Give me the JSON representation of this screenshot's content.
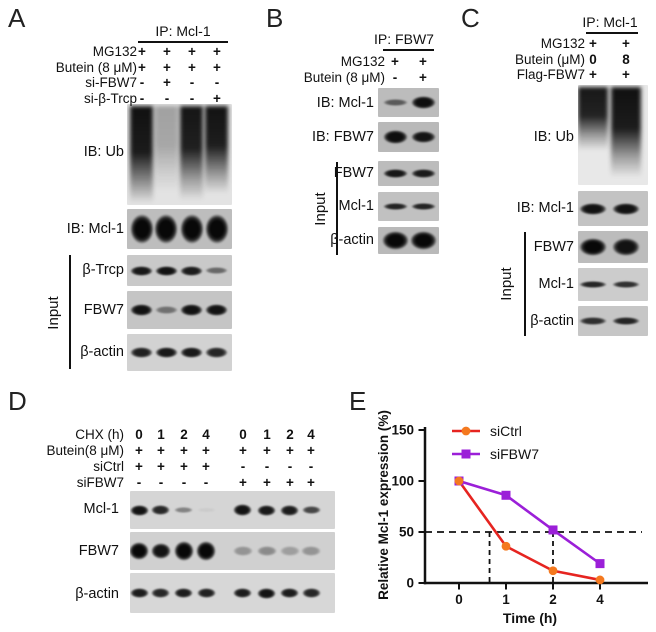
{
  "panels": {
    "a": {
      "letter": "A",
      "ip_header": "IP:  Mcl-1",
      "input_label": "Input",
      "rows": [
        {
          "label": "MG132",
          "values": [
            "+",
            "+",
            "+",
            "+"
          ]
        },
        {
          "label": "Butein (8 μM)",
          "values": [
            "+",
            "+",
            "+",
            "+"
          ]
        },
        {
          "label": "si-FBW7",
          "values": [
            "-",
            "+",
            "-",
            "-"
          ]
        },
        {
          "label": "si-β-Trcp",
          "values": [
            "-",
            "-",
            "-",
            "+"
          ]
        }
      ],
      "blots": [
        {
          "label": "IB: Ub",
          "style": "smear",
          "lanes": [
            [
              0.97,
              0.95
            ],
            [
              0.3,
              0.8
            ],
            [
              0.95,
              0.88
            ],
            [
              0.96,
              0.82
            ]
          ]
        },
        {
          "label": "IB: Mcl-1",
          "style": "band",
          "lanes": [
            [
              1,
              1
            ],
            [
              1,
              1
            ],
            [
              1,
              1
            ],
            [
              1,
              1
            ]
          ]
        },
        {
          "label": "β-Trcp",
          "style": "band",
          "lanes": [
            [
              0.92,
              1
            ],
            [
              0.95,
              1
            ],
            [
              0.9,
              1
            ],
            [
              0.5,
              0.7
            ]
          ]
        },
        {
          "label": "FBW7",
          "style": "band",
          "lanes": [
            [
              0.95,
              1
            ],
            [
              0.45,
              0.7
            ],
            [
              0.95,
              1
            ],
            [
              0.95,
              1
            ]
          ]
        },
        {
          "label": "β-actin",
          "style": "band",
          "lanes": [
            [
              0.88,
              1
            ],
            [
              0.92,
              1
            ],
            [
              0.92,
              1
            ],
            [
              0.85,
              1
            ]
          ]
        }
      ]
    },
    "b": {
      "letter": "B",
      "ip_header": "IP:  FBW7",
      "input_label": "Input",
      "rows": [
        {
          "label": "MG132",
          "values": [
            "+",
            "+"
          ]
        },
        {
          "label": "Butein (8 μM)",
          "values": [
            "-",
            "+"
          ]
        }
      ],
      "blots": [
        {
          "label": "IB: Mcl-1",
          "style": "band",
          "lanes": [
            [
              0.55,
              0.55
            ],
            [
              0.97,
              1.1
            ]
          ]
        },
        {
          "label": "IB: FBW7",
          "style": "band",
          "lanes": [
            [
              0.97,
              1.1
            ],
            [
              0.93,
              1
            ]
          ]
        },
        {
          "label": "FBW7",
          "style": "band",
          "lanes": [
            [
              0.92,
              0.9
            ],
            [
              0.9,
              0.9
            ]
          ]
        },
        {
          "label": "Mcl-1",
          "style": "band",
          "lanes": [
            [
              0.85,
              0.75
            ],
            [
              0.85,
              0.75
            ]
          ]
        },
        {
          "label": "β-actin",
          "style": "band",
          "lanes": [
            [
              1,
              1.4
            ],
            [
              1,
              1.4
            ]
          ]
        }
      ]
    },
    "c": {
      "letter": "C",
      "ip_header": "IP:  Mcl-1",
      "input_label": "Input",
      "rows": [
        {
          "label": "MG132",
          "values": [
            "+",
            "+"
          ]
        },
        {
          "label": "Butein (μM)",
          "values": [
            "0",
            "8"
          ]
        },
        {
          "label": "Flag-FBW7",
          "values": [
            "+",
            "+"
          ]
        }
      ],
      "blots": [
        {
          "label": "IB: Ub",
          "style": "smear",
          "lanes": [
            [
              0.94,
              0.6
            ],
            [
              0.97,
              0.85
            ]
          ]
        },
        {
          "label": "IB: Mcl-1",
          "style": "band",
          "lanes": [
            [
              0.95,
              1
            ],
            [
              0.95,
              1
            ]
          ]
        },
        {
          "label": "FBW7",
          "style": "band",
          "lanes": [
            [
              1,
              1.35
            ],
            [
              0.95,
              1.25
            ]
          ]
        },
        {
          "label": "Mcl-1",
          "style": "band",
          "lanes": [
            [
              0.85,
              0.8
            ],
            [
              0.8,
              0.75
            ]
          ]
        },
        {
          "label": "β-actin",
          "style": "band",
          "lanes": [
            [
              0.8,
              0.8
            ],
            [
              0.85,
              0.85
            ]
          ]
        }
      ]
    },
    "d": {
      "letter": "D",
      "rows": [
        {
          "label": "CHX (h)",
          "values": [
            "0",
            "1",
            "2",
            "4",
            "0",
            "1",
            "2",
            "4"
          ]
        },
        {
          "label": "Butein(8 μM)",
          "values": [
            "+",
            "+",
            "+",
            "+",
            "+",
            "+",
            "+",
            "+"
          ]
        },
        {
          "label": "siCtrl",
          "values": [
            "+",
            "+",
            "+",
            "+",
            "-",
            "-",
            "-",
            "-"
          ]
        },
        {
          "label": "siFBW7",
          "values": [
            "-",
            "-",
            "-",
            "-",
            "+",
            "+",
            "+",
            "+"
          ]
        }
      ],
      "blots": [
        {
          "label": "Mcl-1",
          "style": "band",
          "lanes": [
            [
              0.95,
              1
            ],
            [
              0.85,
              0.9
            ],
            [
              0.4,
              0.6
            ],
            [
              0.05,
              0.4
            ],
            [
              0.95,
              1.1
            ],
            [
              0.92,
              1
            ],
            [
              0.9,
              1
            ],
            [
              0.7,
              0.8
            ]
          ]
        },
        {
          "label": "FBW7",
          "style": "band",
          "lanes": [
            [
              1,
              1.5
            ],
            [
              0.95,
              1.4
            ],
            [
              1,
              1.6
            ],
            [
              1,
              1.6
            ],
            [
              0.3,
              0.9
            ],
            [
              0.35,
              0.9
            ],
            [
              0.25,
              0.8
            ],
            [
              0.3,
              0.8
            ]
          ]
        },
        {
          "label": "β-actin",
          "style": "band",
          "lanes": [
            [
              0.9,
              1
            ],
            [
              0.85,
              1
            ],
            [
              0.9,
              1
            ],
            [
              0.88,
              1
            ],
            [
              0.9,
              1
            ],
            [
              0.95,
              1.1
            ],
            [
              0.9,
              1
            ],
            [
              0.85,
              1
            ]
          ]
        }
      ]
    },
    "e": {
      "letter": "E"
    }
  },
  "chart_data": {
    "type": "line",
    "x_categories": [
      0,
      1,
      2,
      4
    ],
    "xlabel": "Time (h)",
    "ylabel": "Relative Mcl-1 expression (%)",
    "yticks": [
      0,
      50,
      100,
      150
    ],
    "ylim": [
      0,
      157
    ],
    "grid": false,
    "legend_position": "top-left-inside",
    "series": [
      {
        "name": "siCtrl",
        "values": [
          100,
          36,
          12,
          3
        ],
        "line_color": "#e62420",
        "marker_color": "#f4791f",
        "marker": "circle"
      },
      {
        "name": "siFBW7",
        "values": [
          100,
          86,
          52,
          19
        ],
        "line_color": "#9b1fd8",
        "marker_color": "#9b1fd8",
        "marker": "square"
      }
    ],
    "annotations": {
      "hline_y": 50,
      "vline_at_index": [
        0.65,
        2
      ],
      "line_style": "dashed",
      "color": "#111111"
    }
  }
}
